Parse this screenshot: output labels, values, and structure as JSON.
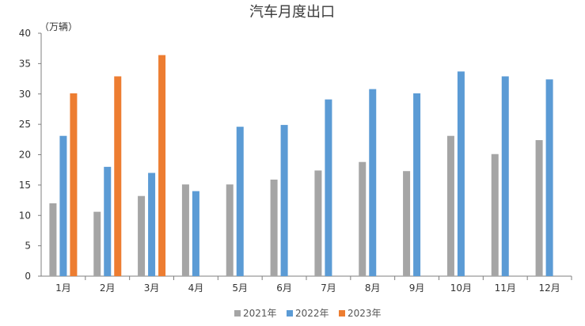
{
  "chart_data": {
    "type": "bar",
    "title": "汽车月度出口",
    "unit_label": "（万辆）",
    "categories": [
      "1月",
      "2月",
      "3月",
      "4月",
      "5月",
      "6月",
      "7月",
      "8月",
      "9月",
      "10月",
      "11月",
      "12月"
    ],
    "series": [
      {
        "name": "2021年",
        "color": "#a5a5a5",
        "values": [
          12.0,
          10.6,
          13.2,
          15.1,
          15.1,
          15.9,
          17.4,
          18.8,
          17.3,
          23.1,
          20.1,
          22.4
        ]
      },
      {
        "name": "2022年",
        "color": "#5b9bd5",
        "values": [
          23.1,
          18.0,
          17.0,
          14.0,
          24.6,
          24.9,
          29.1,
          30.8,
          30.1,
          33.7,
          32.9,
          32.4
        ]
      },
      {
        "name": "2023年",
        "color": "#ed7d31",
        "values": [
          30.1,
          32.9,
          36.4,
          null,
          null,
          null,
          null,
          null,
          null,
          null,
          null,
          null
        ]
      }
    ],
    "ylim": [
      0,
      40
    ],
    "yticks": [
      0,
      5,
      10,
      15,
      20,
      25,
      30,
      35,
      40
    ],
    "legend_position": "bottom",
    "grid": false
  }
}
